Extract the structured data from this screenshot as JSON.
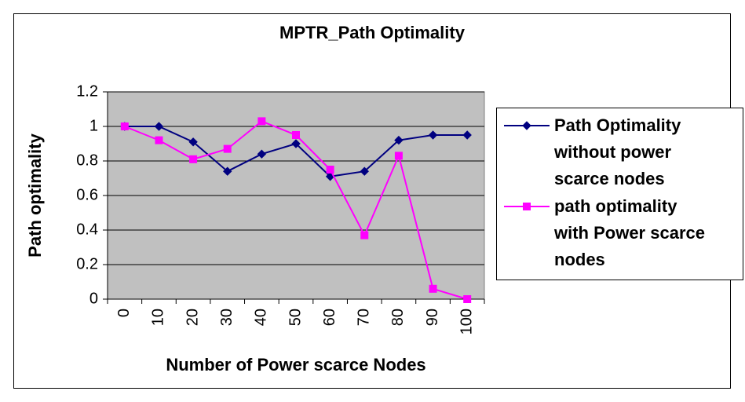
{
  "chart_data": {
    "type": "line",
    "title": "MPTR_Path Optimality",
    "x_label": "Number of Power scarce Nodes",
    "y_label": "Path optimality",
    "categories": [
      "0",
      "10",
      "20",
      "30",
      "40",
      "50",
      "60",
      "70",
      "80",
      "90",
      "100"
    ],
    "series": [
      {
        "name": "Path Optimality without power scarce nodes",
        "color": "#000080",
        "marker": "diamond",
        "values": [
          1,
          1,
          0.91,
          0.74,
          0.84,
          0.9,
          0.71,
          0.74,
          0.92,
          0.95,
          0.95
        ]
      },
      {
        "name": "path optimality with Power scarce nodes",
        "color": "#ff00ff",
        "marker": "square",
        "values": [
          1,
          0.92,
          0.81,
          0.87,
          1.03,
          0.95,
          0.75,
          0.37,
          0.83,
          0.06,
          0
        ]
      }
    ],
    "ylim": [
      0,
      1.2
    ],
    "yticks": [
      0,
      0.2,
      0.4,
      0.6,
      0.8,
      1,
      {
        "value": 1.2,
        "label": "1.2"
      }
    ],
    "grid": true,
    "legend": "right"
  }
}
